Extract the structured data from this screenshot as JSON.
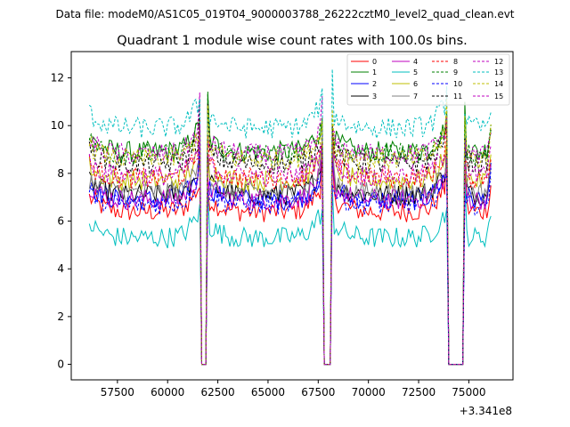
{
  "chart_data": {
    "type": "line",
    "suptitle": "Data file: modeM0/AS1C05_019T04_9000003788_26222cztM0_level2_quad_clean.evt",
    "title": "Quadrant 1 module wise count rates with 100.0s bins.",
    "xlabel": "",
    "ylabel": "",
    "x_offset_label": "+3.341e8",
    "xlim": [
      55200,
      77200
    ],
    "ylim": [
      -0.65,
      13.1
    ],
    "x_ticks": [
      57500,
      60000,
      62500,
      65000,
      67500,
      70000,
      72500,
      75000
    ],
    "x_tick_labels": [
      "57500",
      "60000",
      "62500",
      "65000",
      "67500",
      "70000",
      "72500",
      "75000"
    ],
    "y_ticks": [
      0,
      2,
      4,
      6,
      8,
      10,
      12
    ],
    "y_tick_labels": [
      "0",
      "2",
      "4",
      "6",
      "8",
      "10",
      "12"
    ],
    "x_start": 56100,
    "x_end": 76100,
    "bin_width_s": 100,
    "gaps": [
      [
        61600,
        61950
      ],
      [
        67700,
        68200
      ],
      [
        73900,
        74750
      ]
    ],
    "legend_position": "top-right",
    "legend_columns": 4,
    "series": [
      {
        "name": "0",
        "color": "#ff0000",
        "style": "solid",
        "base": 6.4
      },
      {
        "name": "1",
        "color": "#008000",
        "style": "solid",
        "base": 8.9
      },
      {
        "name": "2",
        "color": "#0000ff",
        "style": "solid",
        "base": 6.9
      },
      {
        "name": "3",
        "color": "#000000",
        "style": "solid",
        "base": 7.1
      },
      {
        "name": "4",
        "color": "#bf00bf",
        "style": "solid",
        "base": 6.9
      },
      {
        "name": "5",
        "color": "#00bfbf",
        "style": "solid",
        "base": 5.3
      },
      {
        "name": "6",
        "color": "#bfbf00",
        "style": "solid",
        "base": 7.7
      },
      {
        "name": "7",
        "color": "#808080",
        "style": "solid",
        "base": 7.2
      },
      {
        "name": "8",
        "color": "#ff0000",
        "style": "dashed",
        "base": 7.8
      },
      {
        "name": "9",
        "color": "#008000",
        "style": "dashed",
        "base": 8.8
      },
      {
        "name": "10",
        "color": "#0000ff",
        "style": "dashed",
        "base": 6.7
      },
      {
        "name": "11",
        "color": "#000000",
        "style": "dashed",
        "base": 8.4
      },
      {
        "name": "12",
        "color": "#bf00bf",
        "style": "dashed",
        "base": 8.8
      },
      {
        "name": "13",
        "color": "#00bfbf",
        "style": "dashed",
        "base": 9.9
      },
      {
        "name": "14",
        "color": "#bfbf00",
        "style": "dashed",
        "base": 8.6
      },
      {
        "name": "15",
        "color": "#bf00bf",
        "style": "dashed",
        "base": 7.9
      }
    ]
  }
}
